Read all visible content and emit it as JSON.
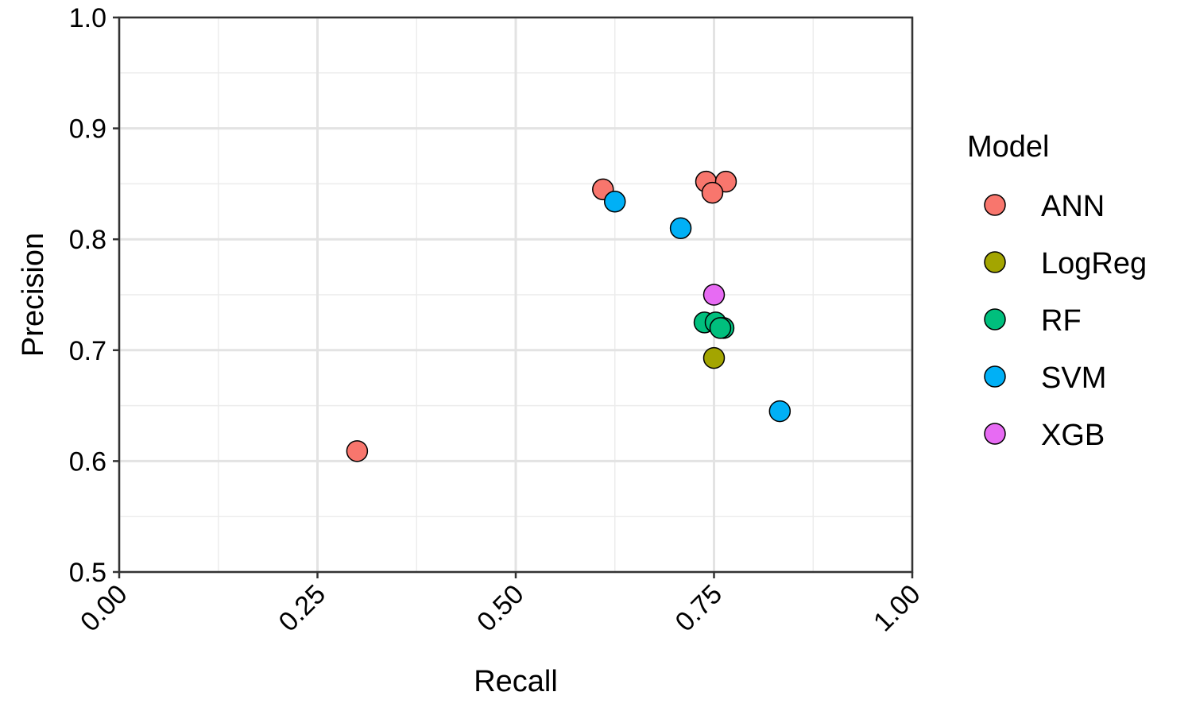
{
  "chart_data": {
    "type": "scatter",
    "xlabel": "Recall",
    "ylabel": "Precision",
    "xlim": [
      0,
      1
    ],
    "ylim": [
      0.5,
      1
    ],
    "x_ticks": [
      "0.00",
      "0.25",
      "0.50",
      "0.75",
      "1.00"
    ],
    "y_ticks": [
      "0.5",
      "0.6",
      "0.7",
      "0.8",
      "0.9",
      "1.0"
    ],
    "x_tick_rotation": "45 degrees",
    "grid": true,
    "legend": {
      "title": "Model",
      "placement": "right"
    },
    "series": [
      {
        "name": "ANN",
        "color": "#F8766D",
        "points": [
          [
            0.61,
            0.845
          ],
          [
            0.74,
            0.852
          ],
          [
            0.765,
            0.852
          ],
          [
            0.748,
            0.842
          ],
          [
            0.3,
            0.609
          ]
        ]
      },
      {
        "name": "LogReg",
        "color": "#A3A500",
        "points": [
          [
            0.75,
            0.693
          ]
        ]
      },
      {
        "name": "RF",
        "color": "#00BF7D",
        "points": [
          [
            0.738,
            0.725
          ],
          [
            0.752,
            0.725
          ],
          [
            0.762,
            0.72
          ],
          [
            0.758,
            0.72
          ]
        ]
      },
      {
        "name": "SVM",
        "color": "#00B0F6",
        "points": [
          [
            0.625,
            0.834
          ],
          [
            0.708,
            0.81
          ],
          [
            0.833,
            0.645
          ]
        ]
      },
      {
        "name": "XGB",
        "color": "#E76BF3",
        "points": [
          [
            0.75,
            0.75
          ]
        ]
      }
    ]
  }
}
